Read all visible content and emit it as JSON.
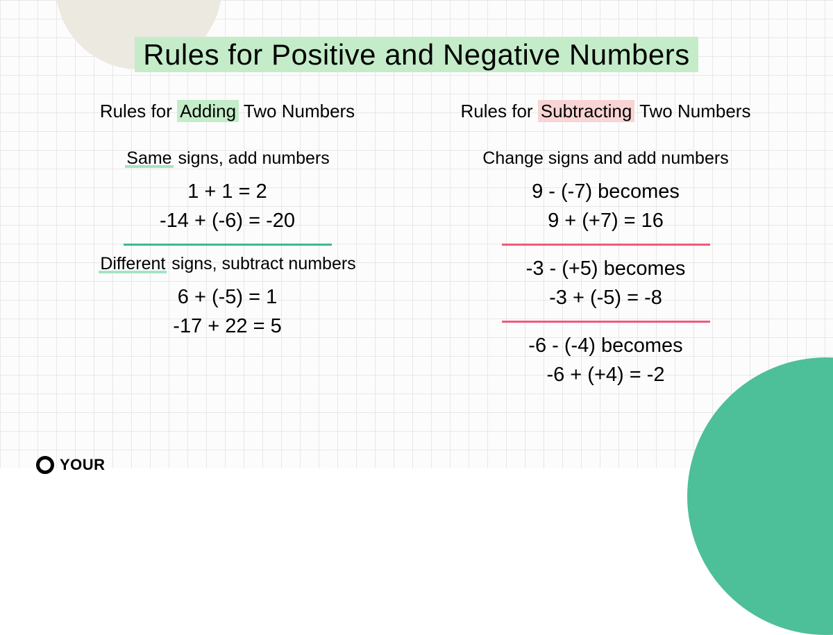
{
  "colors": {
    "title_highlight": "#c4ecc9",
    "add_highlight": "#c4ecc9",
    "sub_highlight": "#f8d4d4",
    "underline_green": "#a7e3c2",
    "divider_green": "#3cb98c",
    "divider_pink": "#ee5a7a",
    "corner_circle": "#4dbf99",
    "top_circle": "#ece9e1",
    "grid_line": "#e7e7e7",
    "background": "#fcfcfc"
  },
  "title": "Rules for Positive and Negative Numbers",
  "left": {
    "heading_pre": "Rules for ",
    "heading_hl": "Adding",
    "heading_post": " Two Numbers",
    "section1": {
      "label_pre": "Same",
      "label_rest": " signs, add numbers",
      "eq1": "1 + 1 = 2",
      "eq2": "-14 + (-6) = -20"
    },
    "section2": {
      "label_pre": "Different",
      "label_rest": " signs, subtract numbers",
      "eq1": "6 + (-5) = 1",
      "eq2": "-17 + 22 = 5"
    }
  },
  "right": {
    "heading_pre": "Rules for ",
    "heading_hl": "Subtracting",
    "heading_post": " Two Numbers",
    "label": "Change signs and add numbers",
    "ex1": {
      "l1": "9 - (-7) becomes",
      "l2": "9 + (+7) = 16"
    },
    "ex2": {
      "l1": "-3 - (+5) becomes",
      "l2": "-3 + (-5) = -8"
    },
    "ex3": {
      "l1": "-6 - (-4) becomes",
      "l2": "-6 + (+4) = -2"
    }
  },
  "logo_text": "YOUR"
}
